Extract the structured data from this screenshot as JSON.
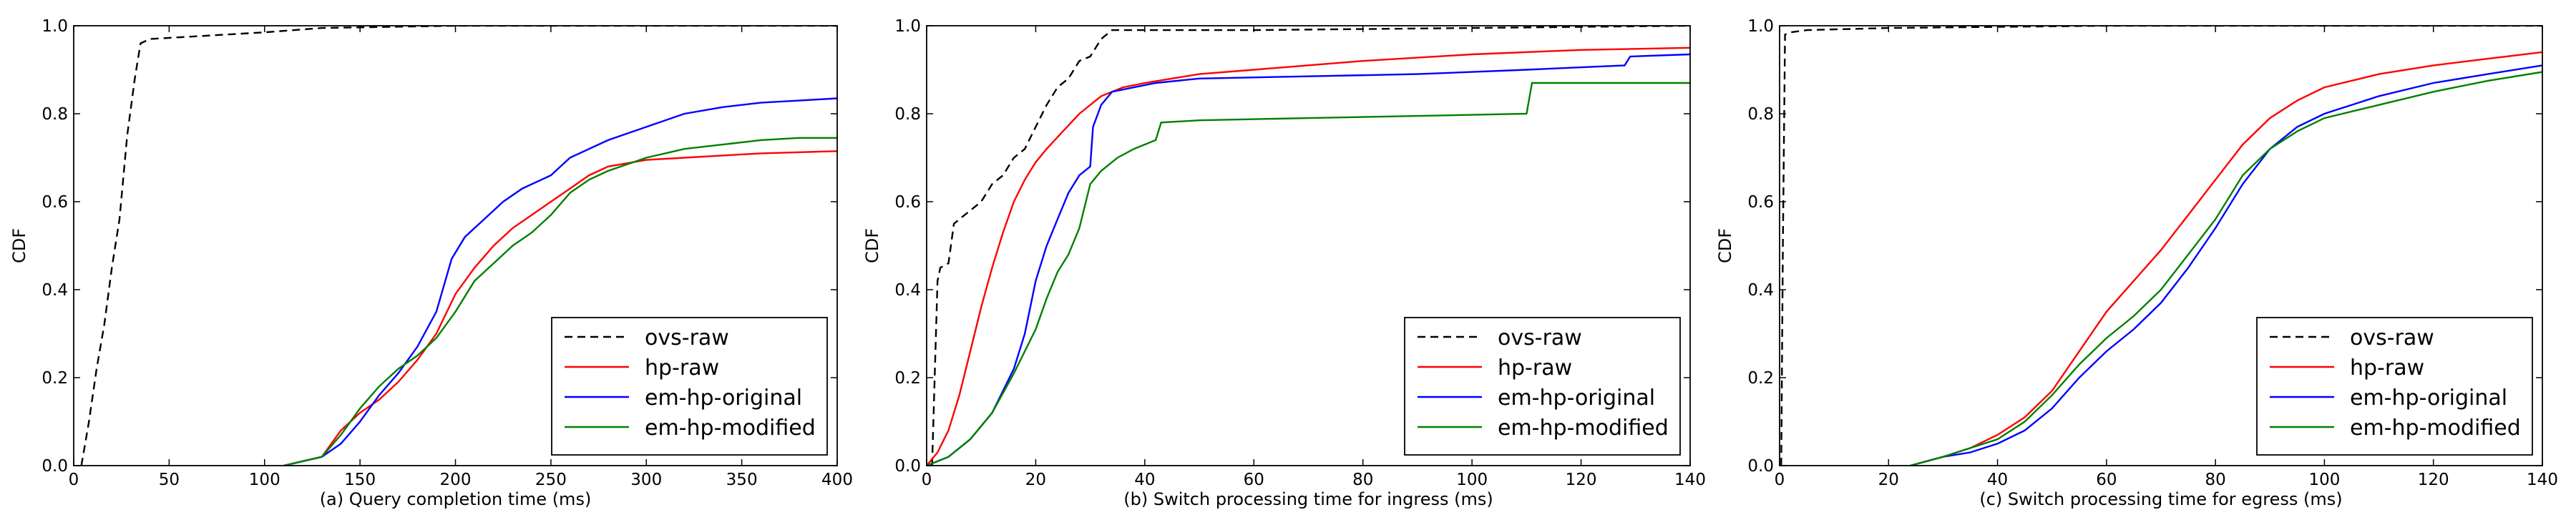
{
  "chart_data": [
    {
      "type": "line",
      "xlabel": "(a) Query completion time (ms)",
      "ylabel": "CDF",
      "xlim": [
        0,
        400
      ],
      "ylim": [
        0,
        1.0
      ],
      "xticks": [
        "0",
        "50",
        "100",
        "150",
        "200",
        "250",
        "300",
        "350",
        "400"
      ],
      "yticks": [
        "0.0",
        "0.2",
        "0.4",
        "0.6",
        "0.8",
        "1.0"
      ],
      "legend_position": "lower-right",
      "series": [
        {
          "name": "ovs-raw",
          "color": "#000000",
          "dash": true,
          "x": [
            4,
            8,
            12,
            16,
            20,
            24,
            28,
            32,
            35,
            40,
            60,
            80,
            100,
            130,
            200,
            400
          ],
          "y": [
            0.0,
            0.1,
            0.22,
            0.32,
            0.45,
            0.56,
            0.75,
            0.88,
            0.96,
            0.97,
            0.975,
            0.98,
            0.985,
            0.995,
            1.0,
            1.0
          ]
        },
        {
          "name": "hp-raw",
          "color": "#ff0000",
          "dash": false,
          "x": [
            110,
            130,
            140,
            150,
            160,
            170,
            180,
            190,
            200,
            210,
            220,
            230,
            240,
            250,
            260,
            270,
            280,
            300,
            320,
            340,
            360,
            400
          ],
          "y": [
            0.0,
            0.02,
            0.08,
            0.12,
            0.15,
            0.19,
            0.24,
            0.3,
            0.39,
            0.45,
            0.5,
            0.54,
            0.57,
            0.6,
            0.63,
            0.66,
            0.68,
            0.695,
            0.7,
            0.705,
            0.71,
            0.715
          ]
        },
        {
          "name": "em-hp-original",
          "color": "#0000ff",
          "dash": false,
          "x": [
            110,
            130,
            140,
            150,
            160,
            170,
            180,
            190,
            198,
            205,
            215,
            225,
            235,
            250,
            260,
            280,
            300,
            320,
            340,
            360,
            380,
            400
          ],
          "y": [
            0.0,
            0.02,
            0.05,
            0.1,
            0.16,
            0.21,
            0.27,
            0.35,
            0.47,
            0.52,
            0.56,
            0.6,
            0.63,
            0.66,
            0.7,
            0.74,
            0.77,
            0.8,
            0.815,
            0.825,
            0.83,
            0.835
          ]
        },
        {
          "name": "em-hp-modified",
          "color": "#008000",
          "dash": false,
          "x": [
            110,
            130,
            140,
            150,
            160,
            170,
            180,
            190,
            200,
            210,
            220,
            230,
            240,
            250,
            260,
            270,
            280,
            300,
            320,
            340,
            360,
            380,
            400
          ],
          "y": [
            0.0,
            0.02,
            0.07,
            0.13,
            0.18,
            0.22,
            0.25,
            0.29,
            0.35,
            0.42,
            0.46,
            0.5,
            0.53,
            0.57,
            0.62,
            0.65,
            0.67,
            0.7,
            0.72,
            0.73,
            0.74,
            0.745,
            0.745
          ]
        }
      ]
    },
    {
      "type": "line",
      "xlabel": "(b) Switch processing time for ingress (ms)",
      "ylabel": "CDF",
      "xlim": [
        0,
        140
      ],
      "ylim": [
        0,
        1.0
      ],
      "xticks": [
        "0",
        "20",
        "40",
        "60",
        "80",
        "100",
        "120",
        "140"
      ],
      "yticks": [
        "0.0",
        "0.2",
        "0.4",
        "0.6",
        "0.8",
        "1.0"
      ],
      "legend_position": "lower-right",
      "series": [
        {
          "name": "ovs-raw",
          "color": "#000000",
          "dash": true,
          "x": [
            1,
            2,
            2.5,
            4,
            5,
            6,
            8,
            10,
            12,
            14,
            16,
            18,
            20,
            22,
            24,
            26,
            28,
            30,
            32,
            34,
            40,
            60,
            100,
            140
          ],
          "y": [
            0.0,
            0.42,
            0.45,
            0.46,
            0.55,
            0.56,
            0.58,
            0.6,
            0.64,
            0.66,
            0.7,
            0.72,
            0.77,
            0.82,
            0.86,
            0.88,
            0.92,
            0.93,
            0.97,
            0.99,
            0.99,
            0.99,
            0.995,
            1.0
          ]
        },
        {
          "name": "hp-raw",
          "color": "#ff0000",
          "dash": false,
          "x": [
            0,
            2,
            4,
            6,
            8,
            10,
            12,
            14,
            16,
            18,
            20,
            22,
            25,
            28,
            32,
            36,
            40,
            50,
            60,
            80,
            100,
            120,
            140
          ],
          "y": [
            0.0,
            0.03,
            0.08,
            0.16,
            0.26,
            0.36,
            0.45,
            0.53,
            0.6,
            0.65,
            0.69,
            0.72,
            0.76,
            0.8,
            0.84,
            0.86,
            0.87,
            0.89,
            0.9,
            0.92,
            0.935,
            0.945,
            0.95
          ]
        },
        {
          "name": "em-hp-original",
          "color": "#0000ff",
          "dash": false,
          "x": [
            0,
            4,
            8,
            12,
            16,
            18,
            20,
            22,
            24,
            26,
            28,
            30,
            30.5,
            32,
            34,
            38,
            42,
            50,
            70,
            90,
            110,
            128,
            129,
            140
          ],
          "y": [
            0.0,
            0.02,
            0.06,
            0.12,
            0.22,
            0.3,
            0.42,
            0.5,
            0.56,
            0.62,
            0.66,
            0.68,
            0.77,
            0.82,
            0.85,
            0.86,
            0.87,
            0.88,
            0.885,
            0.89,
            0.9,
            0.91,
            0.93,
            0.935
          ]
        },
        {
          "name": "em-hp-modified",
          "color": "#008000",
          "dash": false,
          "x": [
            0,
            4,
            8,
            12,
            16,
            18,
            20,
            22,
            24,
            26,
            28,
            30,
            32,
            35,
            38,
            42,
            43,
            50,
            70,
            90,
            110,
            111,
            140
          ],
          "y": [
            0.0,
            0.02,
            0.06,
            0.12,
            0.21,
            0.26,
            0.31,
            0.38,
            0.44,
            0.48,
            0.54,
            0.64,
            0.67,
            0.7,
            0.72,
            0.74,
            0.78,
            0.785,
            0.79,
            0.795,
            0.8,
            0.87,
            0.87
          ]
        }
      ]
    },
    {
      "type": "line",
      "xlabel": "(c) Switch processing time for egress (ms)",
      "ylabel": "CDF",
      "xlim": [
        0,
        140
      ],
      "ylim": [
        0,
        1.0
      ],
      "xticks": [
        "0",
        "20",
        "40",
        "60",
        "80",
        "100",
        "120",
        "140"
      ],
      "yticks": [
        "0.0",
        "0.2",
        "0.4",
        "0.6",
        "0.8",
        "1.0"
      ],
      "legend_position": "lower-right",
      "series": [
        {
          "name": "ovs-raw",
          "color": "#000000",
          "dash": true,
          "x": [
            0.3,
            0.6,
            1,
            2,
            5,
            20,
            60,
            140
          ],
          "y": [
            0.0,
            0.5,
            0.98,
            0.985,
            0.99,
            0.995,
            1.0,
            1.0
          ]
        },
        {
          "name": "hp-raw",
          "color": "#ff0000",
          "dash": false,
          "x": [
            24,
            30,
            35,
            40,
            45,
            50,
            55,
            60,
            65,
            70,
            75,
            80,
            85,
            90,
            95,
            100,
            110,
            120,
            130,
            140
          ],
          "y": [
            0.0,
            0.02,
            0.04,
            0.07,
            0.11,
            0.17,
            0.26,
            0.35,
            0.42,
            0.49,
            0.57,
            0.65,
            0.73,
            0.79,
            0.83,
            0.86,
            0.89,
            0.91,
            0.925,
            0.94
          ]
        },
        {
          "name": "em-hp-original",
          "color": "#0000ff",
          "dash": false,
          "x": [
            24,
            30,
            35,
            40,
            45,
            50,
            55,
            60,
            65,
            70,
            75,
            80,
            85,
            90,
            95,
            100,
            110,
            120,
            130,
            140
          ],
          "y": [
            0.0,
            0.02,
            0.03,
            0.05,
            0.08,
            0.13,
            0.2,
            0.26,
            0.31,
            0.37,
            0.45,
            0.54,
            0.64,
            0.72,
            0.77,
            0.8,
            0.84,
            0.87,
            0.89,
            0.91
          ]
        },
        {
          "name": "em-hp-modified",
          "color": "#008000",
          "dash": false,
          "x": [
            24,
            30,
            35,
            40,
            45,
            50,
            55,
            60,
            65,
            70,
            75,
            80,
            85,
            90,
            95,
            100,
            110,
            120,
            130,
            140
          ],
          "y": [
            0.0,
            0.02,
            0.04,
            0.06,
            0.1,
            0.16,
            0.23,
            0.29,
            0.34,
            0.4,
            0.48,
            0.56,
            0.66,
            0.72,
            0.76,
            0.79,
            0.82,
            0.85,
            0.875,
            0.895
          ]
        }
      ]
    }
  ]
}
